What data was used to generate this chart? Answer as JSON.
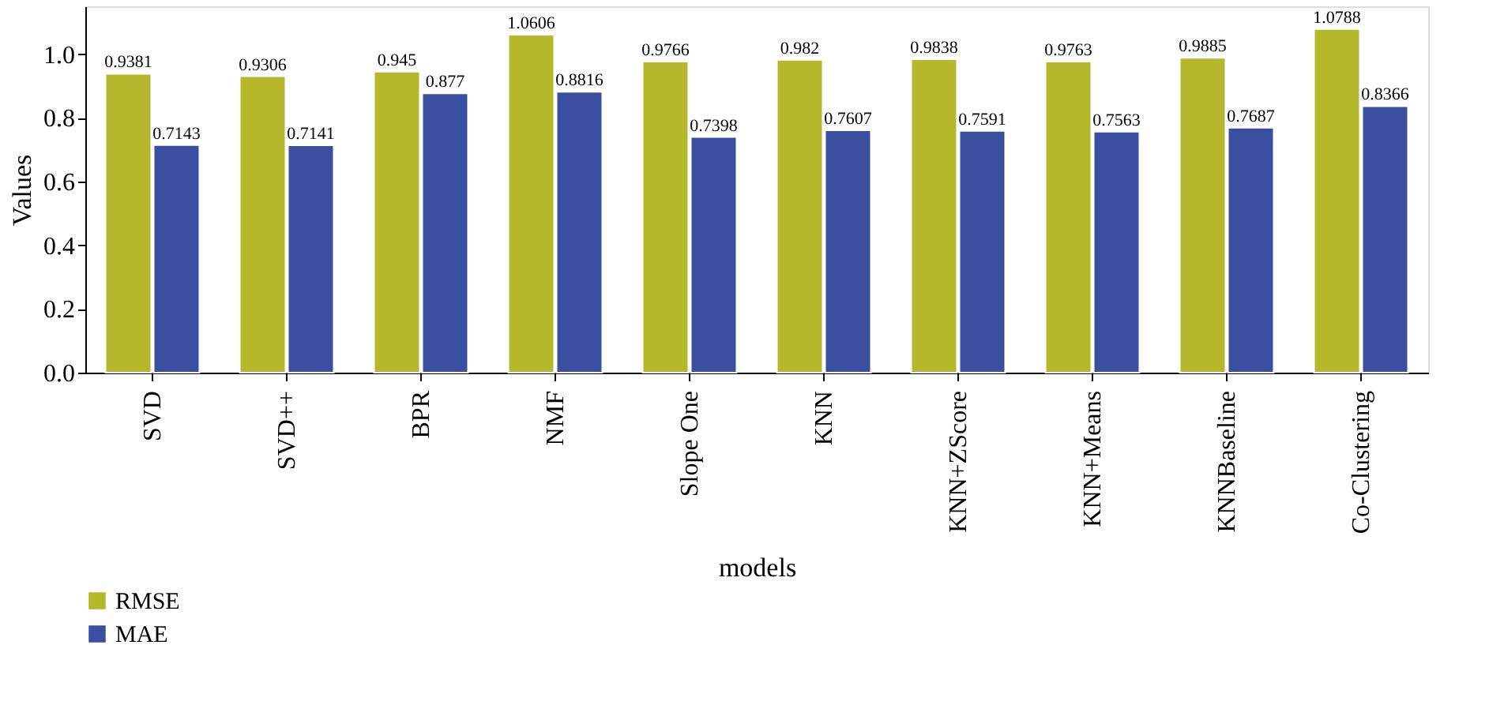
{
  "chart_data": {
    "type": "bar",
    "xlabel": "models",
    "ylabel": "Values",
    "categories": [
      "SVD",
      "SVD++",
      "BPR",
      "NMF",
      "Slope One",
      "KNN",
      "KNN+ZScore",
      "KNN+Means",
      "KNNBaseline",
      "Co-Clustering"
    ],
    "series": [
      {
        "name": "RMSE",
        "color": "#b5b82a",
        "values": [
          0.9381,
          0.9306,
          0.945,
          1.0606,
          0.9766,
          0.982,
          0.9838,
          0.9763,
          0.9885,
          1.0788
        ]
      },
      {
        "name": "MAE",
        "color": "#3a4fa0",
        "values": [
          0.7143,
          0.7141,
          0.877,
          0.8816,
          0.7398,
          0.7607,
          0.7591,
          0.7563,
          0.7687,
          0.8366
        ]
      }
    ],
    "ylim": [
      0,
      1.15
    ],
    "yticks": [
      {
        "value": 0,
        "label": "0.0"
      },
      {
        "value": 0.2,
        "label": "0.2"
      },
      {
        "value": 0.4,
        "label": "0.4"
      },
      {
        "value": 0.6,
        "label": "0.6"
      },
      {
        "value": 0.8,
        "label": "0.8"
      },
      {
        "value": 1.0,
        "label": "1.0"
      }
    ],
    "data_labels": true,
    "grid": false,
    "legend": "bottom left"
  }
}
